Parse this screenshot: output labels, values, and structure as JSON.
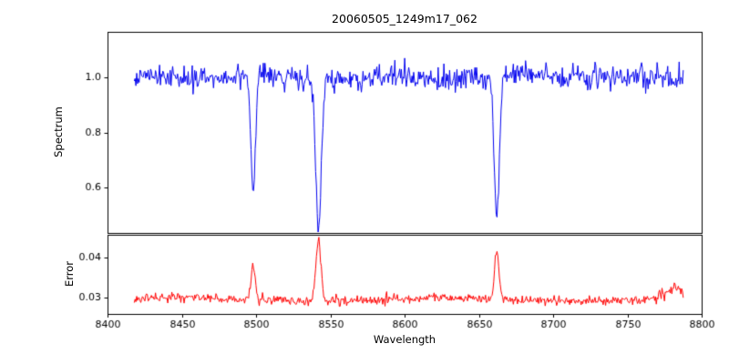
{
  "chart_data": {
    "type": "line",
    "title": "20060505_1249m17_062",
    "xlabel": "Wavelength",
    "xlim": [
      8400,
      8800
    ],
    "x_data_range": [
      8418,
      8788
    ],
    "x_step": 0.55,
    "xticks": [
      8400,
      8450,
      8500,
      8550,
      8600,
      8650,
      8700,
      8750,
      8800
    ],
    "xtick_labels": [
      "8400",
      "8450",
      "8500",
      "8550",
      "8600",
      "8650",
      "8700",
      "8750",
      "8800"
    ],
    "grid": false,
    "legend": "none",
    "seed": 42,
    "subplots": [
      {
        "ylabel": "Spectrum",
        "color": "#0000ee",
        "ylim": [
          0.433,
          1.167
        ],
        "yticks": [
          0.6,
          0.8,
          1.0
        ],
        "ytick_labels": [
          "0.6",
          "0.8",
          "1.0"
        ],
        "baseline": 1.0,
        "noise_sigma": 0.021
      },
      {
        "ylabel": "Error",
        "color": "#ff0000",
        "ylim": [
          0.0259,
          0.0457
        ],
        "yticks": [
          0.03,
          0.04
        ],
        "ytick_labels": [
          "0.03",
          "0.04"
        ],
        "baseline": 0.0295,
        "noise_sigma": 0.00055
      }
    ],
    "absorption_lines": [
      {
        "center": 8498,
        "spectrum_min": 0.585,
        "spectrum_width": 1.5,
        "error_peak": 0.038,
        "error_width": 1.5
      },
      {
        "center": 8542,
        "spectrum_min": 0.465,
        "spectrum_width": 1.9,
        "error_peak": 0.0445,
        "error_width": 1.7
      },
      {
        "center": 8662,
        "spectrum_min": 0.485,
        "spectrum_width": 1.7,
        "error_peak": 0.0418,
        "error_width": 1.5
      }
    ],
    "error_edge_bump": {
      "center": 8781,
      "value": 0.0325,
      "width": 6
    }
  }
}
